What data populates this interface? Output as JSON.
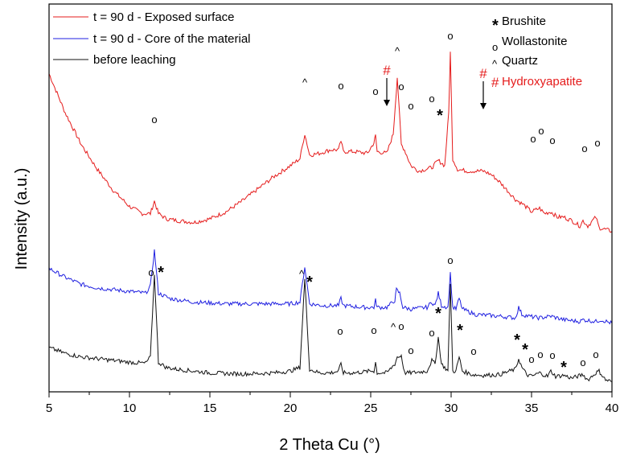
{
  "chart_data": {
    "type": "line",
    "xlabel": "2 Theta Cu (°)",
    "ylabel": "Intensity (a.u.)",
    "xlim": [
      5,
      40
    ],
    "xticks": [
      "5",
      "10",
      "15",
      "20",
      "25",
      "30",
      "35",
      "40"
    ],
    "y_ticks_shown": false,
    "grid": false,
    "legend_position": "top-left",
    "series": [
      {
        "name": "t = 90 d  - Exposed surface",
        "color": "#e51b1b",
        "x": [
          5,
          6,
          7,
          8,
          9,
          10,
          10.8,
          11.3,
          11.55,
          11.8,
          12.3,
          13,
          14,
          15,
          16,
          17,
          18,
          19,
          20,
          20.6,
          20.9,
          21.2,
          21.8,
          22.5,
          23.0,
          23.15,
          23.3,
          24,
          24.8,
          25.2,
          25.3,
          25.4,
          26.0,
          26.4,
          26.65,
          26.9,
          27.1,
          27.5,
          28,
          28.8,
          29.2,
          29.6,
          29.85,
          29.95,
          30.1,
          30.4,
          31,
          31.5,
          32,
          32.5,
          33,
          33.5,
          34,
          34.5,
          35.0,
          35.5,
          35.8,
          36.2,
          36.6,
          37,
          37.5,
          38.0,
          38.2,
          38.5,
          39.0,
          39.2,
          39.6,
          40
        ],
        "values": [
          0.86,
          0.75,
          0.66,
          0.59,
          0.53,
          0.485,
          0.465,
          0.465,
          0.5,
          0.465,
          0.45,
          0.445,
          0.44,
          0.45,
          0.47,
          0.5,
          0.535,
          0.57,
          0.6,
          0.62,
          0.69,
          0.63,
          0.635,
          0.645,
          0.645,
          0.67,
          0.64,
          0.64,
          0.635,
          0.665,
          0.685,
          0.64,
          0.635,
          0.69,
          0.85,
          0.66,
          0.645,
          0.6,
          0.585,
          0.595,
          0.615,
          0.6,
          0.75,
          0.92,
          0.62,
          0.59,
          0.585,
          0.585,
          0.585,
          0.575,
          0.555,
          0.53,
          0.505,
          0.49,
          0.47,
          0.48,
          0.465,
          0.47,
          0.455,
          0.455,
          0.445,
          0.43,
          0.445,
          0.43,
          0.455,
          0.425,
          0.42,
          0.415
        ]
      },
      {
        "name": "t = 90 d  - Core of the material",
        "color": "#1f1fe0",
        "x": [
          5,
          6,
          7,
          8,
          9,
          10,
          11,
          11.3,
          11.55,
          11.8,
          12.5,
          14,
          16,
          18,
          20,
          20.6,
          20.9,
          21.2,
          22,
          23,
          23.15,
          23.3,
          24.5,
          25.2,
          25.3,
          25.4,
          26,
          26.5,
          26.6,
          26.8,
          27,
          27.5,
          28.5,
          28.8,
          29,
          29.2,
          29.4,
          29.8,
          29.95,
          30.1,
          30.3,
          30.5,
          30.7,
          31.5,
          33,
          34,
          34.2,
          34.4,
          34.8,
          35.5,
          36.2,
          37,
          38,
          38.2,
          39,
          39.3,
          40
        ],
        "values": [
          0.31,
          0.285,
          0.265,
          0.255,
          0.25,
          0.245,
          0.24,
          0.26,
          0.36,
          0.24,
          0.225,
          0.215,
          0.21,
          0.21,
          0.21,
          0.215,
          0.315,
          0.21,
          0.205,
          0.205,
          0.225,
          0.205,
          0.2,
          0.2,
          0.22,
          0.2,
          0.2,
          0.22,
          0.25,
          0.24,
          0.2,
          0.195,
          0.2,
          0.215,
          0.205,
          0.24,
          0.205,
          0.2,
          0.295,
          0.2,
          0.195,
          0.225,
          0.195,
          0.18,
          0.175,
          0.17,
          0.2,
          0.18,
          0.175,
          0.17,
          0.175,
          0.165,
          0.16,
          0.165,
          0.16,
          0.165,
          0.155
        ]
      },
      {
        "name": "before leaching",
        "color": "#111111",
        "x": [
          5,
          6,
          7,
          8,
          9,
          10,
          11,
          11.3,
          11.55,
          11.8,
          12.3,
          13,
          14,
          15,
          16,
          17,
          18,
          19,
          20,
          20.6,
          20.9,
          21.2,
          21.8,
          22.5,
          23,
          23.15,
          23.3,
          24,
          25,
          25.2,
          25.3,
          25.4,
          26,
          26.5,
          26.65,
          26.8,
          26.9,
          27.1,
          27.5,
          28.5,
          28.8,
          29,
          29.2,
          29.4,
          29.8,
          29.95,
          30.1,
          30.3,
          30.5,
          30.7,
          31.3,
          32,
          33,
          34,
          34.2,
          34.4,
          34.7,
          35,
          35.5,
          36,
          36.2,
          36.5,
          37,
          37.5,
          38.2,
          38.5,
          39,
          39.2,
          39.6,
          40
        ],
        "values": [
          0.086,
          0.07,
          0.06,
          0.055,
          0.05,
          0.045,
          0.042,
          0.06,
          0.295,
          0.045,
          0.03,
          0.025,
          0.02,
          0.015,
          0.013,
          0.012,
          0.013,
          0.015,
          0.02,
          0.03,
          0.28,
          0.025,
          0.015,
          0.015,
          0.02,
          0.04,
          0.015,
          0.015,
          0.02,
          0.02,
          0.045,
          0.015,
          0.015,
          0.04,
          0.06,
          0.06,
          0.065,
          0.015,
          0.015,
          0.02,
          0.05,
          0.04,
          0.115,
          0.04,
          0.02,
          0.27,
          0.02,
          0.02,
          0.06,
          0.02,
          0.01,
          0.008,
          0.01,
          0.025,
          0.055,
          0.03,
          0.01,
          0.005,
          0.015,
          0.005,
          0.02,
          0.005,
          0.008,
          0.0,
          0.01,
          -0.005,
          0.015,
          0.02,
          -0.005,
          -0.01
        ]
      }
    ]
  },
  "phase_legend": [
    {
      "symbol": "*",
      "name": "Brushite",
      "color": "#000000"
    },
    {
      "symbol": "o",
      "name": "Wollastonite",
      "color": "#000000"
    },
    {
      "symbol": "^",
      "name": "Quartz",
      "color": "#000000"
    },
    {
      "symbol": "#",
      "name": "Hydroxyapatite",
      "color": "#e51b1b"
    }
  ]
}
